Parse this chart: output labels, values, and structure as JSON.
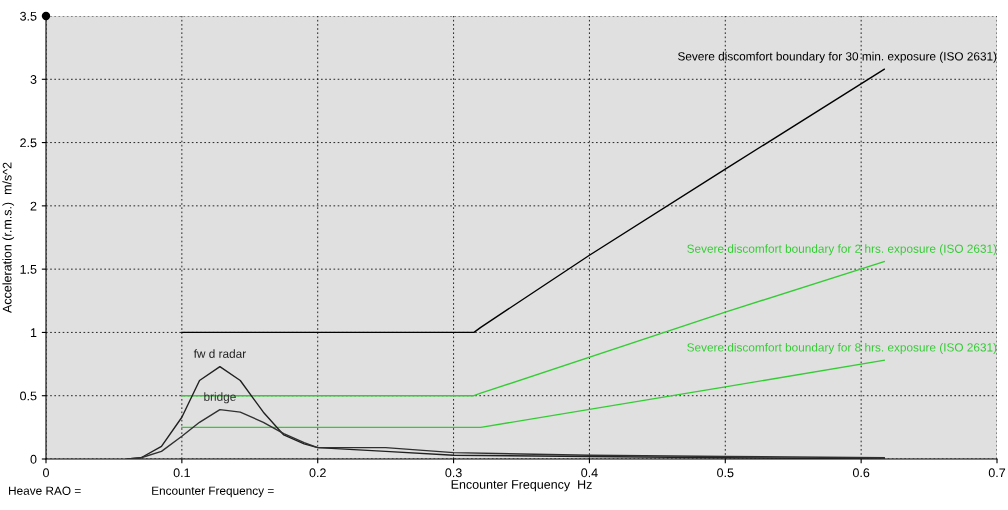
{
  "chart_data": {
    "type": "line",
    "xlabel": "Encounter Frequency  Hz",
    "ylabel": "Acceleration (r.m.s.)  m/s^2",
    "xlim": [
      0,
      0.7
    ],
    "xticks": [
      0,
      0.1,
      0.2,
      0.3,
      0.4,
      0.5,
      0.6,
      0.7
    ],
    "ylim": [
      0,
      3.5
    ],
    "yticks": [
      0,
      0.5,
      1,
      1.5,
      2,
      2.5,
      3,
      3.5
    ],
    "grid": true,
    "line_style": "solid",
    "marker": "none",
    "series": [
      {
        "name": "Severe discomfort boundary for 30 min. exposure (ISO 2631)",
        "color": "#000000",
        "x": [
          0.1,
          0.315,
          0.32,
          0.4,
          0.5,
          0.617
        ],
        "values": [
          1.0,
          1.0,
          1.04,
          1.61,
          2.29,
          3.08
        ]
      },
      {
        "name": "Severe discomfort boundary for 2 hrs. exposure (ISO 2631)",
        "color": "#33cc33",
        "x": [
          0.1,
          0.315,
          0.32,
          0.5,
          0.617
        ],
        "values": [
          0.5,
          0.5,
          0.52,
          1.16,
          1.56
        ]
      },
      {
        "name": "Severe discomfort boundary for 8 hrs. exposure (ISO 2631)",
        "color": "#33cc33",
        "x": [
          0.1,
          0.32,
          0.5,
          0.617
        ],
        "values": [
          0.25,
          0.25,
          0.57,
          0.78
        ]
      },
      {
        "name": "fw d radar",
        "color": "#202020",
        "x": [
          0.06,
          0.07,
          0.085,
          0.1,
          0.113,
          0.128,
          0.143,
          0.16,
          0.175,
          0.19,
          0.2,
          0.25,
          0.3,
          0.4,
          0.5,
          0.617
        ],
        "values": [
          0,
          0.01,
          0.1,
          0.33,
          0.62,
          0.73,
          0.62,
          0.37,
          0.19,
          0.12,
          0.09,
          0.06,
          0.03,
          0.02,
          0.01,
          0.0
        ]
      },
      {
        "name": "bridge",
        "color": "#303030",
        "x": [
          0.06,
          0.07,
          0.085,
          0.1,
          0.113,
          0.128,
          0.143,
          0.16,
          0.175,
          0.19,
          0.2,
          0.25,
          0.3,
          0.4,
          0.5,
          0.617
        ],
        "values": [
          0,
          0.01,
          0.06,
          0.18,
          0.29,
          0.39,
          0.37,
          0.29,
          0.2,
          0.13,
          0.09,
          0.09,
          0.05,
          0.03,
          0.02,
          0.01
        ]
      },
      {
        "type": "scatter",
        "color": "#000000",
        "x": [
          0
        ],
        "values": [
          3.5
        ]
      }
    ],
    "annotations": [
      "Heave RAO =",
      "Encounter Frequency ="
    ]
  }
}
